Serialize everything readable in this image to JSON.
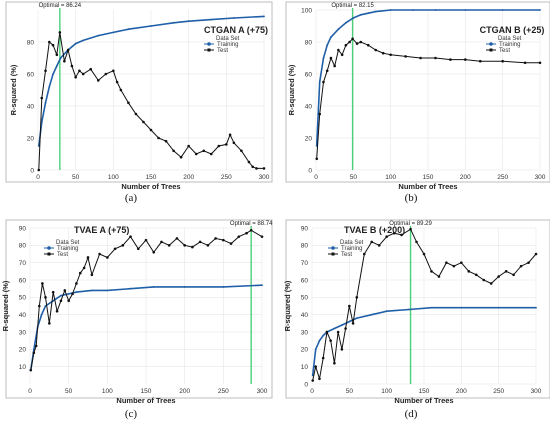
{
  "chart_data": [
    {
      "type": "line",
      "title": "CTGAN A (+75)",
      "caption": "(a)",
      "xlabel": "Number of Trees",
      "ylabel": "R-squared (%)",
      "xlim": [
        0,
        300
      ],
      "ylim": [
        0,
        100
      ],
      "xticks": [
        0,
        50,
        100,
        150,
        200,
        250,
        300
      ],
      "yticks": [
        0,
        20,
        40,
        60,
        80
      ],
      "optimal_label": "Optimal = 86.24",
      "optimal_x": 29,
      "legend": {
        "title": "Data Set",
        "items": [
          "Training",
          "Test"
        ]
      },
      "series": [
        {
          "name": "Training",
          "color": "#1f5fa8",
          "x": [
            1,
            5,
            10,
            15,
            20,
            25,
            30,
            40,
            50,
            60,
            80,
            100,
            120,
            150,
            180,
            200,
            230,
            260,
            300
          ],
          "y": [
            15,
            30,
            42,
            52,
            60,
            65,
            70,
            75,
            79,
            81,
            84,
            86,
            88,
            90,
            92,
            93,
            94,
            95,
            96
          ]
        },
        {
          "name": "Test",
          "color": "#111111",
          "x": [
            1,
            5,
            10,
            15,
            20,
            25,
            29,
            35,
            40,
            45,
            50,
            55,
            60,
            70,
            80,
            90,
            100,
            105,
            110,
            120,
            130,
            140,
            150,
            160,
            170,
            180,
            190,
            200,
            210,
            220,
            230,
            240,
            250,
            255,
            260,
            270,
            280,
            285,
            290,
            300
          ],
          "y": [
            0,
            45,
            62,
            80,
            78,
            72,
            86,
            68,
            75,
            65,
            58,
            62,
            60,
            63,
            56,
            60,
            62,
            55,
            50,
            42,
            35,
            30,
            25,
            20,
            18,
            12,
            8,
            15,
            10,
            12,
            10,
            15,
            16,
            22,
            17,
            12,
            5,
            2,
            1,
            1
          ]
        }
      ]
    },
    {
      "type": "line",
      "title": "CTGAN B (+25)",
      "caption": "(b)",
      "xlabel": "Number of Trees",
      "ylabel": "R-squared (%)",
      "xlim": [
        0,
        300
      ],
      "ylim": [
        0,
        100
      ],
      "xticks": [
        0,
        50,
        100,
        150,
        200,
        250,
        300
      ],
      "yticks": [
        0,
        20,
        40,
        60,
        80,
        100
      ],
      "optimal_label": "Optimal = 82.15",
      "optimal_x": 49,
      "legend": {
        "title": "Data Set",
        "items": [
          "Training",
          "Test"
        ]
      },
      "series": [
        {
          "name": "Training",
          "color": "#1f5fa8",
          "x": [
            1,
            5,
            10,
            15,
            20,
            30,
            40,
            50,
            60,
            70,
            80,
            100,
            130,
            160,
            200,
            250,
            300
          ],
          "y": [
            15,
            55,
            70,
            78,
            83,
            88,
            92,
            95,
            97,
            98,
            99,
            100,
            100,
            100,
            100,
            100,
            100
          ]
        },
        {
          "name": "Test",
          "color": "#111111",
          "x": [
            1,
            5,
            10,
            15,
            20,
            25,
            30,
            35,
            40,
            45,
            49,
            55,
            60,
            70,
            80,
            90,
            100,
            120,
            140,
            160,
            180,
            200,
            220,
            250,
            280,
            300
          ],
          "y": [
            7,
            35,
            55,
            62,
            70,
            65,
            75,
            72,
            78,
            80,
            82,
            79,
            80,
            78,
            75,
            73,
            72,
            71,
            70,
            70,
            69,
            69,
            68,
            68,
            67,
            67
          ]
        }
      ]
    },
    {
      "type": "line",
      "title": "TVAE A (+75)",
      "caption": "(c)",
      "xlabel": "Number of Trees",
      "ylabel": "R-squared (%)",
      "xlim": [
        0,
        300
      ],
      "ylim": [
        0,
        90
      ],
      "xticks": [
        0,
        50,
        100,
        150,
        200,
        250,
        300
      ],
      "yticks": [
        10,
        20,
        30,
        40,
        50,
        60,
        70,
        80,
        90
      ],
      "optimal_label": "Optimal = 88.74",
      "optimal_x": 286,
      "legend": {
        "title": "Data Set",
        "items": [
          "Training",
          "Test"
        ]
      },
      "series": [
        {
          "name": "Training",
          "color": "#1f5fa8",
          "x": [
            1,
            5,
            10,
            15,
            20,
            30,
            40,
            50,
            60,
            80,
            100,
            130,
            160,
            200,
            250,
            300
          ],
          "y": [
            8,
            20,
            33,
            40,
            45,
            48,
            51,
            52,
            53,
            54,
            54,
            55,
            56,
            56,
            56,
            57
          ]
        },
        {
          "name": "Test",
          "color": "#111111",
          "x": [
            1,
            5,
            8,
            12,
            16,
            20,
            25,
            30,
            35,
            40,
            45,
            50,
            55,
            60,
            65,
            70,
            75,
            80,
            90,
            100,
            110,
            120,
            130,
            140,
            150,
            160,
            170,
            180,
            190,
            200,
            210,
            220,
            230,
            240,
            250,
            260,
            270,
            280,
            286,
            300
          ],
          "y": [
            8,
            18,
            22,
            45,
            58,
            50,
            35,
            53,
            42,
            48,
            54,
            48,
            52,
            58,
            64,
            67,
            73,
            63,
            75,
            73,
            78,
            80,
            85,
            78,
            83,
            76,
            82,
            80,
            84,
            80,
            79,
            82,
            80,
            84,
            83,
            81,
            85,
            87,
            88.7,
            85
          ]
        }
      ]
    },
    {
      "type": "line",
      "title": "TVAE B (+200)",
      "caption": "(d)",
      "xlabel": "Number of Trees",
      "ylabel": "R-squared (%)",
      "xlim": [
        0,
        300
      ],
      "ylim": [
        0,
        90
      ],
      "xticks": [
        0,
        50,
        100,
        150,
        200,
        250,
        300
      ],
      "yticks": [
        0,
        10,
        20,
        30,
        40,
        50,
        60,
        70,
        80,
        90
      ],
      "optimal_label": "Optimal = 89.29",
      "optimal_x": 132,
      "legend": {
        "title": "Data Set",
        "items": [
          "Training",
          "Test"
        ]
      },
      "series": [
        {
          "name": "Training",
          "color": "#1f5fa8",
          "x": [
            1,
            5,
            10,
            15,
            20,
            30,
            40,
            50,
            60,
            80,
            100,
            130,
            160,
            200,
            250,
            300
          ],
          "y": [
            5,
            20,
            25,
            28,
            30,
            32,
            34,
            36,
            38,
            40,
            42,
            43,
            44,
            44,
            44,
            44
          ]
        },
        {
          "name": "Test",
          "color": "#111111",
          "x": [
            1,
            5,
            10,
            15,
            20,
            25,
            30,
            35,
            40,
            45,
            50,
            55,
            60,
            70,
            80,
            90,
            100,
            110,
            120,
            132,
            140,
            150,
            160,
            170,
            180,
            190,
            200,
            210,
            220,
            230,
            240,
            250,
            260,
            270,
            280,
            290,
            300
          ],
          "y": [
            2,
            10,
            3,
            15,
            30,
            25,
            12,
            30,
            20,
            32,
            45,
            35,
            50,
            75,
            82,
            80,
            85,
            87,
            86,
            89.3,
            82,
            75,
            65,
            62,
            70,
            68,
            70,
            65,
            63,
            60,
            58,
            62,
            65,
            63,
            68,
            70,
            75
          ]
        }
      ]
    }
  ]
}
